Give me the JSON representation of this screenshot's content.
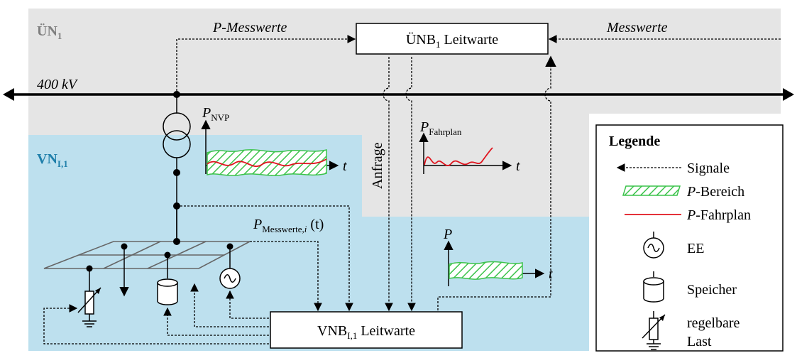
{
  "zones": {
    "uen_label": "ÜN",
    "uen_sub": "1",
    "vn_label": "VN",
    "vn_sub": "I,1",
    "colors": {
      "uen_bg": "#e5e5e5",
      "vn_bg": "#bde0ee",
      "vn_text": "#1f7faa",
      "uen_text": "#7f7f7f"
    }
  },
  "top": {
    "p_messwerte": "P-Messwerte",
    "messwerte": "Messwerte",
    "uenb_box_main": "ÜNB",
    "uenb_box_sub": "1",
    "uenb_box_suffix": " Leitwarte"
  },
  "bus": {
    "label": "400 kV"
  },
  "plots": {
    "nvp_label": "P",
    "nvp_sub": "NVP",
    "t1": "t",
    "fahrplan_label": "P",
    "fahrplan_sub": "Fahrplan",
    "t2": "t",
    "p3_label": "P",
    "t3": "t",
    "colors": {
      "band": "#3cc34b",
      "hatch": "#3cc34b",
      "schedule": "#e0141e"
    }
  },
  "anfrage": "Anfrage",
  "messwerte_i": {
    "main": "P",
    "sub": "Messwerte,",
    "sub_i": "i",
    "suffix": " (t)"
  },
  "vnb_box": {
    "main": "VNB",
    "sub": "I,1",
    "suffix": " Leitwarte"
  },
  "legend": {
    "title": "Legende",
    "signale": "Signale",
    "p_bereich_italic": "P",
    "p_bereich": "-Bereich",
    "p_fahrplan_italic": "P",
    "p_fahrplan": "-Fahrplan",
    "ee": "EE",
    "speicher": "Speicher",
    "last_line1": "regelbare",
    "last_line2": "Last"
  }
}
